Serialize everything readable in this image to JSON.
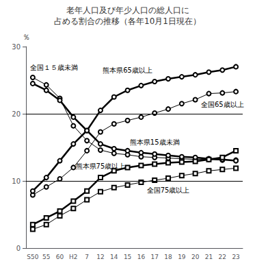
{
  "chart_data": {
    "type": "line",
    "title": "老年人口及び年少人口の総人口に",
    "subtitle": "占める割合の推移（各年10月1日現在）",
    "y_label": "％",
    "categories": [
      "S50",
      "55",
      "60",
      "H2",
      "7",
      "12",
      "14",
      "15",
      "16",
      "17",
      "18",
      "19",
      "20",
      "21",
      "22",
      "23"
    ],
    "ylim": [
      0,
      30
    ],
    "yticks": [
      0,
      10,
      20,
      30
    ],
    "grid": false,
    "hlines": [
      10,
      20
    ],
    "series": [
      {
        "name": "全国１５歳未満",
        "color": "#000000",
        "marker": "circle",
        "line_style": "thin",
        "values": [
          25.4,
          24.3,
          22.3,
          18.2,
          16.0,
          14.6,
          14.1,
          13.9,
          13.6,
          13.5,
          13.4,
          13.3,
          13.2,
          13.2,
          13.1,
          13.1
        ]
      },
      {
        "name": "熊本県15歳未満",
        "color": "#000000",
        "marker": "circle",
        "line_style": "thick",
        "values": [
          24.5,
          23.5,
          22.0,
          19.5,
          17.5,
          15.5,
          14.8,
          14.5,
          14.2,
          14.0,
          13.8,
          13.6,
          13.5,
          13.3,
          13.2,
          13.0
        ]
      },
      {
        "name": "全国65歳以上",
        "color": "#000000",
        "marker": "circle",
        "line_style": "thin",
        "values": [
          7.9,
          9.1,
          10.3,
          12.0,
          14.5,
          17.3,
          18.5,
          19.0,
          19.5,
          20.1,
          20.7,
          21.5,
          22.1,
          23.0,
          23.1,
          23.3
        ]
      },
      {
        "name": "熊本県65歳以上",
        "color": "#000000",
        "marker": "circle",
        "line_style": "thick",
        "values": [
          8.5,
          10.5,
          13.0,
          15.5,
          17.5,
          20.5,
          22.5,
          23.5,
          24.2,
          24.8,
          25.2,
          25.5,
          25.8,
          26.2,
          26.5,
          27.0
        ]
      },
      {
        "name": "全国75歳以上",
        "color": "#000000",
        "marker": "square",
        "line_style": "thin",
        "values": [
          2.8,
          3.5,
          4.8,
          5.9,
          7.2,
          8.4,
          9.0,
          9.4,
          9.8,
          10.1,
          10.4,
          10.8,
          11.1,
          11.5,
          11.7,
          11.9
        ]
      },
      {
        "name": "熊本県75歳以上",
        "color": "#000000",
        "marker": "square",
        "line_style": "thick",
        "values": [
          3.5,
          4.5,
          5.5,
          7.0,
          8.5,
          10.5,
          11.5,
          12.0,
          12.3,
          12.5,
          12.7,
          12.8,
          12.9,
          13.2,
          13.5,
          14.5
        ]
      }
    ]
  }
}
